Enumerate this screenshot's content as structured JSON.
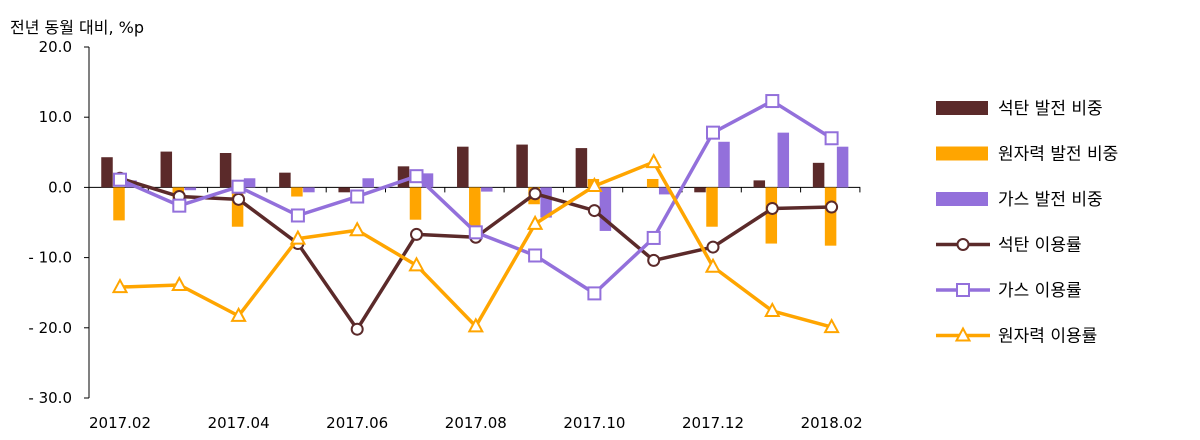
{
  "chart_data": {
    "type": "bar",
    "unit_label": "전년 동월 대비, %p",
    "categories": [
      "2017.02",
      "2017.03",
      "2017.04",
      "2017.05",
      "2017.06",
      "2017.07",
      "2017.08",
      "2017.09",
      "2017.10",
      "2017.11",
      "2017.12",
      "2018.01",
      "2018.02"
    ],
    "x_tick_labels": [
      "2017.02",
      "2017.04",
      "2017.06",
      "2017.08",
      "2017.10",
      "2017.12",
      "2018.02"
    ],
    "ylim": [
      -30,
      20
    ],
    "y_ticks": [
      20,
      10,
      0,
      -10,
      -20,
      -30
    ],
    "y_tick_labels": [
      "20.0",
      "10.0",
      "0.0",
      "- 10.0",
      "- 20.0",
      "- 30.0"
    ],
    "bar_series": [
      {
        "name": "석탄 발전 비중",
        "color": "#5b2a2a",
        "values": [
          4.3,
          5.1,
          4.9,
          2.1,
          -0.7,
          3.0,
          5.8,
          6.1,
          5.6,
          0.0,
          -0.7,
          1.0,
          3.5
        ]
      },
      {
        "name": "원자력 발전 비중",
        "color": "#ffa500",
        "values": [
          -4.7,
          -3.5,
          -5.6,
          -1.3,
          0.0,
          -4.6,
          -5.8,
          -2.4,
          1.2,
          1.2,
          -5.6,
          -8.0,
          -8.3
        ]
      },
      {
        "name": "가스 발전 비중",
        "color": "#9370db",
        "values": [
          1.0,
          -0.4,
          1.3,
          -0.7,
          1.3,
          2.0,
          -0.6,
          -4.3,
          -6.2,
          -1.0,
          6.5,
          7.8,
          5.8
        ]
      }
    ],
    "line_series": [
      {
        "name": "석탄 이용률",
        "color": "#5b2a2a",
        "marker": "circle",
        "values": [
          1.3,
          -1.3,
          -1.7,
          -8.0,
          -20.2,
          -6.7,
          -7.1,
          -0.9,
          -3.3,
          -10.4,
          -8.5,
          -3.0,
          -2.8
        ]
      },
      {
        "name": "가스 이용률",
        "color": "#9370db",
        "marker": "square",
        "values": [
          1.1,
          -2.6,
          0.1,
          -4.0,
          -1.3,
          1.6,
          -6.4,
          -9.7,
          -15.1,
          -7.2,
          7.8,
          12.3,
          7.0
        ]
      },
      {
        "name": "원자력 이용률",
        "color": "#ffa500",
        "marker": "triangle",
        "values": [
          -14.2,
          -13.9,
          -18.3,
          -7.3,
          -6.1,
          -11.1,
          -19.8,
          -5.2,
          0.2,
          3.6,
          -11.3,
          -17.6,
          -19.9
        ]
      }
    ],
    "grid": false,
    "legend_position": "right"
  }
}
